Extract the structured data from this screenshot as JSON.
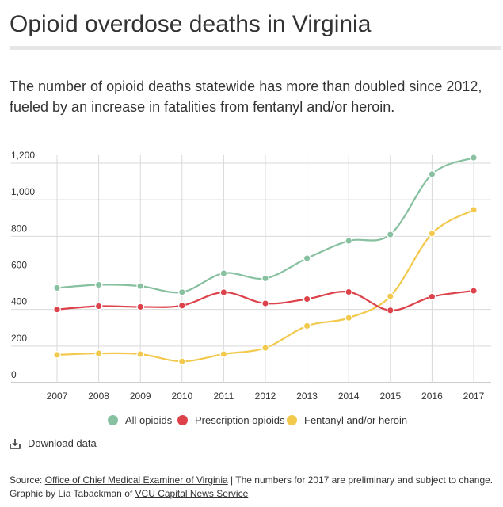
{
  "header": {
    "title": "Opioid overdose deaths in Virginia",
    "subtitle": "The number of opioid deaths statewide has more than doubled since 2012, fueled by an increase in fatalities from fentanyl and/or heroin."
  },
  "chart_data": {
    "type": "line",
    "title": "Opioid overdose deaths in Virginia",
    "xlabel": "",
    "ylabel": "",
    "ylim": [
      0,
      1200
    ],
    "yticks": [
      0,
      200,
      400,
      600,
      800,
      1000,
      1200
    ],
    "ytick_labels": [
      "0",
      "200",
      "400",
      "600",
      "800",
      "1,000",
      "1,200"
    ],
    "categories": [
      "2007",
      "2008",
      "2009",
      "2010",
      "2011",
      "2012",
      "2013",
      "2014",
      "2015",
      "2016",
      "2017"
    ],
    "grid": true,
    "legend_position": "bottom-center",
    "series": [
      {
        "name": "All opioids",
        "color": "#87c1a0",
        "values": [
          518,
          535,
          528,
          495,
          598,
          570,
          680,
          775,
          810,
          1140,
          1230
        ]
      },
      {
        "name": "Prescription opioids",
        "color": "#dd4149",
        "values": [
          400,
          418,
          414,
          421,
          494,
          433,
          457,
          496,
          395,
          470,
          502
        ]
      },
      {
        "name": "Fentanyl and/or heroin",
        "color": "#f2c94c",
        "values": [
          152,
          160,
          156,
          116,
          156,
          190,
          310,
          354,
          472,
          815,
          945
        ]
      }
    ]
  },
  "legend": {
    "items": [
      {
        "label": "All opioids",
        "color": "#87c1a0"
      },
      {
        "label": "Prescription opioids",
        "color": "#dd4149"
      },
      {
        "label": "Fentanyl and/or heroin",
        "color": "#f2c94c"
      }
    ]
  },
  "download": {
    "icon": "download-icon",
    "label": "Download data"
  },
  "footer": {
    "source_prefix": "Source: ",
    "source_link": "Office of Chief Medical Examiner of Virginia",
    "source_note": " | The numbers for 2017 are preliminary and subject to change.",
    "graphic_prefix": "Graphic by Lia Tabackman of ",
    "graphic_link": "VCU Capital News Service"
  }
}
